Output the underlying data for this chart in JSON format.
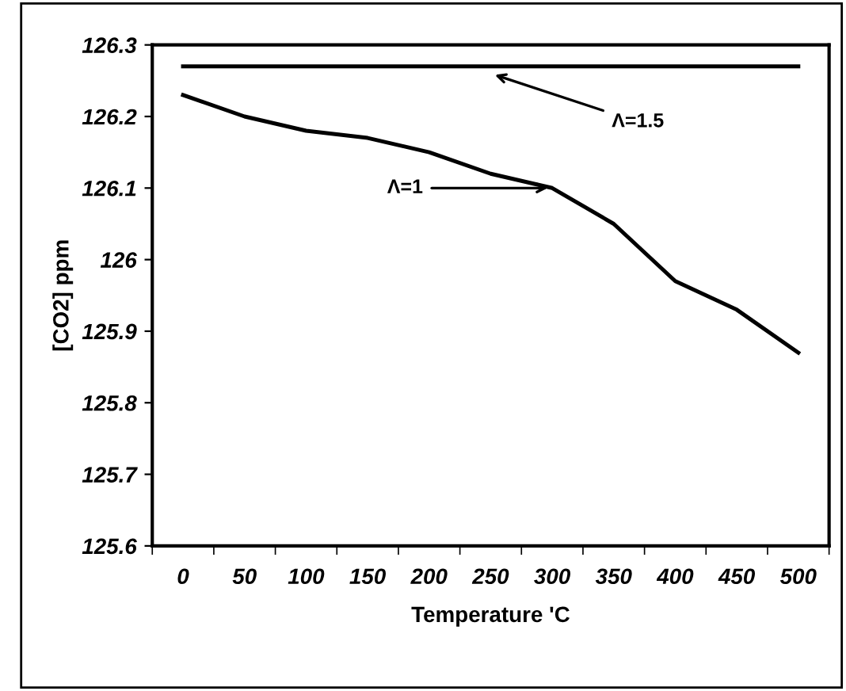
{
  "chart_data": {
    "type": "line",
    "xlabel": "Temperature 'C",
    "ylabel": "[CO2] ppm",
    "categories": [
      "0",
      "50",
      "100",
      "150",
      "200",
      "250",
      "300",
      "350",
      "400",
      "450",
      "500"
    ],
    "series": [
      {
        "color": "#000000",
        "values": [
          126.27,
          126.27,
          126.27,
          126.27,
          126.27,
          126.27,
          126.27,
          126.27,
          126.27,
          126.27,
          126.27
        ]
      },
      {
        "color": "#000000",
        "values": [
          126.23,
          126.2,
          126.18,
          126.17,
          126.15,
          126.12,
          126.1,
          126.05,
          125.97,
          125.93,
          125.87
        ]
      }
    ],
    "annotations": [
      {
        "text": "Λ=1.5",
        "x": "250",
        "y": 126.26
      },
      {
        "text": "Λ=1",
        "x": "300",
        "y": 126.1
      }
    ],
    "ylim": [
      125.6,
      126.3
    ],
    "yticks": [
      125.6,
      125.7,
      125.8,
      125.9,
      {
        "value": 126,
        "label": "126"
      },
      126.1,
      126.2,
      126.3
    ],
    "grid": false,
    "legend": false,
    "marker": "none",
    "line_style": "solid"
  }
}
